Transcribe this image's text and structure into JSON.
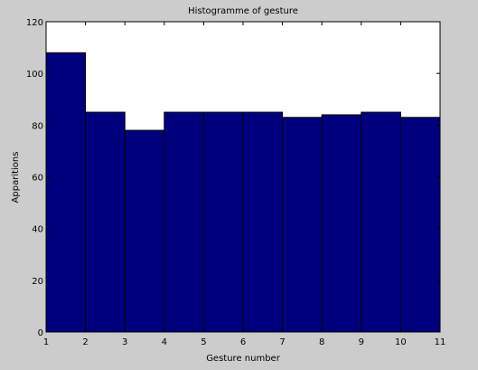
{
  "chart_data": {
    "type": "bar",
    "title": "Histogramme of gesture",
    "xlabel": "Gesture number",
    "ylabel": "Apparitions",
    "bins": [
      {
        "x0": 1,
        "x1": 2,
        "value": 108
      },
      {
        "x0": 2,
        "x1": 3,
        "value": 85
      },
      {
        "x0": 3,
        "x1": 4,
        "value": 78
      },
      {
        "x0": 4,
        "x1": 5,
        "value": 85
      },
      {
        "x0": 5,
        "x1": 6,
        "value": 85
      },
      {
        "x0": 6,
        "x1": 7,
        "value": 85
      },
      {
        "x0": 7,
        "x1": 8,
        "value": 83
      },
      {
        "x0": 8,
        "x1": 9,
        "value": 84
      },
      {
        "x0": 9,
        "x1": 10,
        "value": 85
      },
      {
        "x0": 10,
        "x1": 11,
        "value": 83
      }
    ],
    "xlim": [
      1,
      11
    ],
    "ylim": [
      0,
      120
    ],
    "xticks": [
      1,
      2,
      3,
      4,
      5,
      6,
      7,
      8,
      9,
      10,
      11
    ],
    "yticks": [
      0,
      20,
      40,
      60,
      80,
      100,
      120
    ],
    "grid": false,
    "bar_color": "#00007f",
    "plot_background": "#ffffff",
    "figure_background": "#cccccc"
  }
}
